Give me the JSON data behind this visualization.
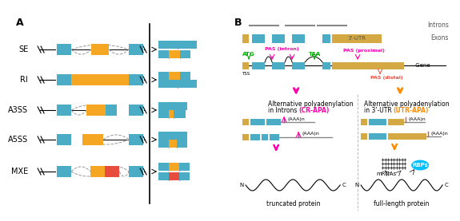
{
  "panel_A_label": "A",
  "panel_B_label": "B",
  "splice_types": [
    "SE",
    "RI",
    "A3SS",
    "A5SS",
    "MXE"
  ],
  "colors": {
    "blue": "#4BACC6",
    "orange": "#F5A623",
    "red": "#E74C3C",
    "pink": "#FF69B4",
    "magenta": "#FF00AA",
    "green": "#00AA00",
    "gray": "#808080",
    "dark_gray": "#555555",
    "light_gray": "#AAAAAA",
    "gold": "#D4A843",
    "orange_arrow": "#FF8C00"
  },
  "fig_width": 5.5,
  "fig_height": 2.57
}
